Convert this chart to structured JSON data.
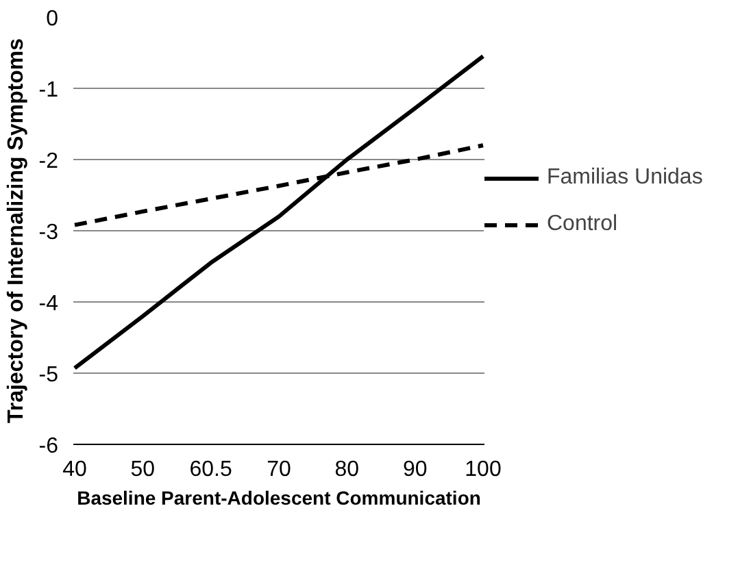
{
  "chart_data": {
    "type": "line",
    "xlabel": "Baseline Parent-Adolescent Communication",
    "ylabel": "Trajectory of Internalizing Symptoms",
    "categories": [
      "40",
      "50",
      "60.5",
      "70",
      "80",
      "90",
      "100"
    ],
    "series": [
      {
        "name": "Familias Unidas",
        "color": "#000000",
        "line_style": "solid",
        "values": [
          -4.93,
          -4.2,
          -3.45,
          -2.8,
          -2.0,
          -1.28,
          -0.55
        ]
      },
      {
        "name": "Control",
        "color": "#000000",
        "line_style": "dashed",
        "values": [
          -2.92,
          -2.73,
          -2.55,
          -2.37,
          -2.18,
          -2.0,
          -1.8
        ]
      }
    ],
    "ylim": [
      -6,
      0
    ],
    "yticks": [
      -6,
      -5,
      -4,
      -3,
      -2,
      -1,
      0
    ],
    "grid": "y",
    "legend": "right",
    "marker": "none"
  }
}
